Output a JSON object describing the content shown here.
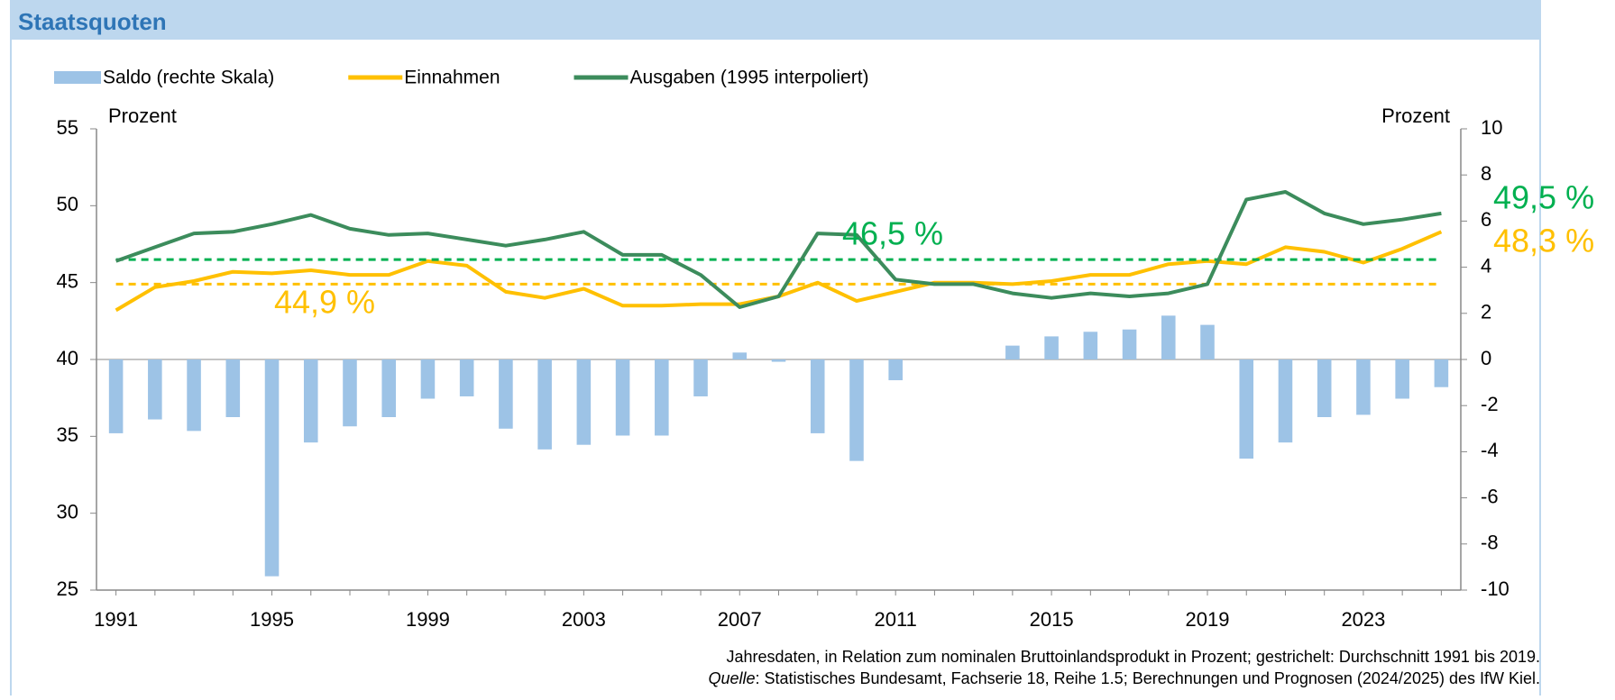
{
  "chart_data": {
    "type": "combo",
    "title": "Staatsquoten",
    "x": [
      1991,
      1992,
      1993,
      1994,
      1995,
      1996,
      1997,
      1998,
      1999,
      2000,
      2001,
      2002,
      2003,
      2004,
      2005,
      2006,
      2007,
      2008,
      2009,
      2010,
      2011,
      2012,
      2013,
      2014,
      2015,
      2016,
      2017,
      2018,
      2019,
      2020,
      2021,
      2022,
      2023,
      2024,
      2025
    ],
    "xlim": [
      1990.5,
      2025.5
    ],
    "xticks": [
      1991,
      1995,
      1999,
      2003,
      2007,
      2011,
      2015,
      2019,
      2023
    ],
    "ylim": [
      25,
      55
    ],
    "yticks": [
      25,
      30,
      35,
      40,
      45,
      50,
      55
    ],
    "y2lim": [
      -10,
      10
    ],
    "y2ticks": [
      -10,
      -8,
      -6,
      -4,
      -2,
      0,
      2,
      4,
      6,
      8,
      10
    ],
    "y_label": "Prozent",
    "y2_label": "Prozent",
    "series": [
      {
        "name": "Saldo (rechte Skala)",
        "type": "bar",
        "axis": "y2",
        "color": "#9dc3e6",
        "values": [
          -3.2,
          -2.6,
          -3.1,
          -2.5,
          -9.4,
          -3.6,
          -2.9,
          -2.5,
          -1.7,
          -1.6,
          -3.0,
          -3.9,
          -3.7,
          -3.3,
          -3.3,
          -1.6,
          0.3,
          -0.1,
          -3.2,
          -4.4,
          -0.9,
          0.0,
          0.0,
          0.6,
          1.0,
          1.2,
          1.3,
          1.9,
          1.5,
          -4.3,
          -3.6,
          -2.5,
          -2.4,
          -1.7,
          -1.2
        ]
      },
      {
        "name": "Einnahmen",
        "type": "line",
        "color": "#ffc000",
        "values": [
          43.2,
          44.7,
          45.1,
          45.7,
          45.6,
          45.8,
          45.5,
          45.5,
          46.4,
          46.1,
          44.4,
          44.0,
          44.6,
          43.5,
          43.5,
          43.6,
          43.6,
          44.1,
          45.0,
          43.8,
          44.4,
          45.0,
          45.0,
          44.9,
          45.1,
          45.5,
          45.5,
          46.2,
          46.4,
          46.2,
          47.3,
          47.0,
          46.3,
          47.2,
          48.3
        ],
        "average": 44.9,
        "average_label": "44,9 %",
        "end_label": "48,3 %"
      },
      {
        "name": "Ausgaben (1995 interpoliert)",
        "type": "line",
        "color": "#3c8c5c",
        "label_color": "#00b050",
        "values": [
          46.4,
          47.3,
          48.2,
          48.3,
          48.8,
          49.4,
          48.5,
          48.1,
          48.2,
          47.8,
          47.4,
          47.8,
          48.3,
          46.8,
          46.8,
          45.5,
          43.4,
          44.1,
          48.2,
          48.1,
          45.2,
          44.9,
          44.9,
          44.3,
          44.0,
          44.3,
          44.1,
          44.3,
          44.9,
          50.4,
          50.9,
          49.5,
          48.8,
          49.1,
          49.5
        ],
        "average": 46.5,
        "average_label": "46,5 %",
        "end_label": "49,5 %"
      }
    ],
    "note": "Jahresdaten, in Relation zum nominalen Bruttoinlandsprodukt in Prozent; gestrichelt: Durchschnitt 1991 bis 2019.",
    "source_label": "Quelle",
    "source": ": Statistisches Bundesamt, Fachserie 18, Reihe 1.5; Berechnungen und Prognosen (2024/2025) des IfW Kiel."
  }
}
